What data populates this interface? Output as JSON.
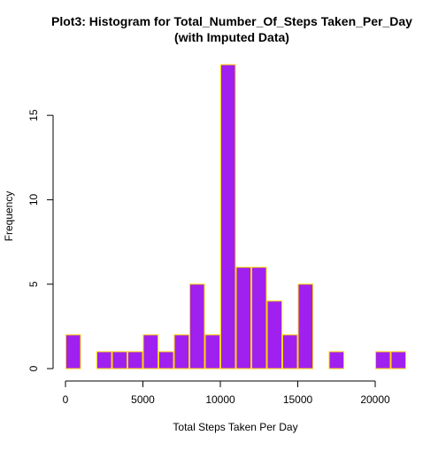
{
  "chart_data": {
    "type": "bar",
    "title": "Plot3: Histogram for Total_Number_Of_Steps Taken_Per_Day",
    "subtitle": "(with Imputed Data)",
    "xlabel": "Total Steps Taken Per Day",
    "ylabel": "Frequency",
    "bin_width": 1000,
    "bin_starts": [
      0,
      1000,
      2000,
      3000,
      4000,
      5000,
      6000,
      7000,
      8000,
      9000,
      10000,
      11000,
      12000,
      13000,
      14000,
      15000,
      16000,
      17000,
      18000,
      19000,
      20000,
      21000
    ],
    "values": [
      2,
      0,
      1,
      1,
      1,
      2,
      1,
      2,
      5,
      2,
      18,
      6,
      6,
      4,
      2,
      5,
      0,
      1,
      0,
      0,
      1,
      1
    ],
    "xlim": [
      0,
      22000
    ],
    "ylim": [
      0,
      18
    ],
    "x_ticks": [
      0,
      5000,
      10000,
      15000,
      20000
    ],
    "x_tick_labels": [
      "0",
      "5000",
      "10000",
      "15000",
      "20000"
    ],
    "y_ticks": [
      0,
      5,
      10,
      15
    ],
    "y_tick_labels": [
      "0",
      "5",
      "10",
      "15"
    ],
    "bar_fill": "#a020f0",
    "bar_border": "#ffd700",
    "grid": false,
    "legend": "none"
  }
}
